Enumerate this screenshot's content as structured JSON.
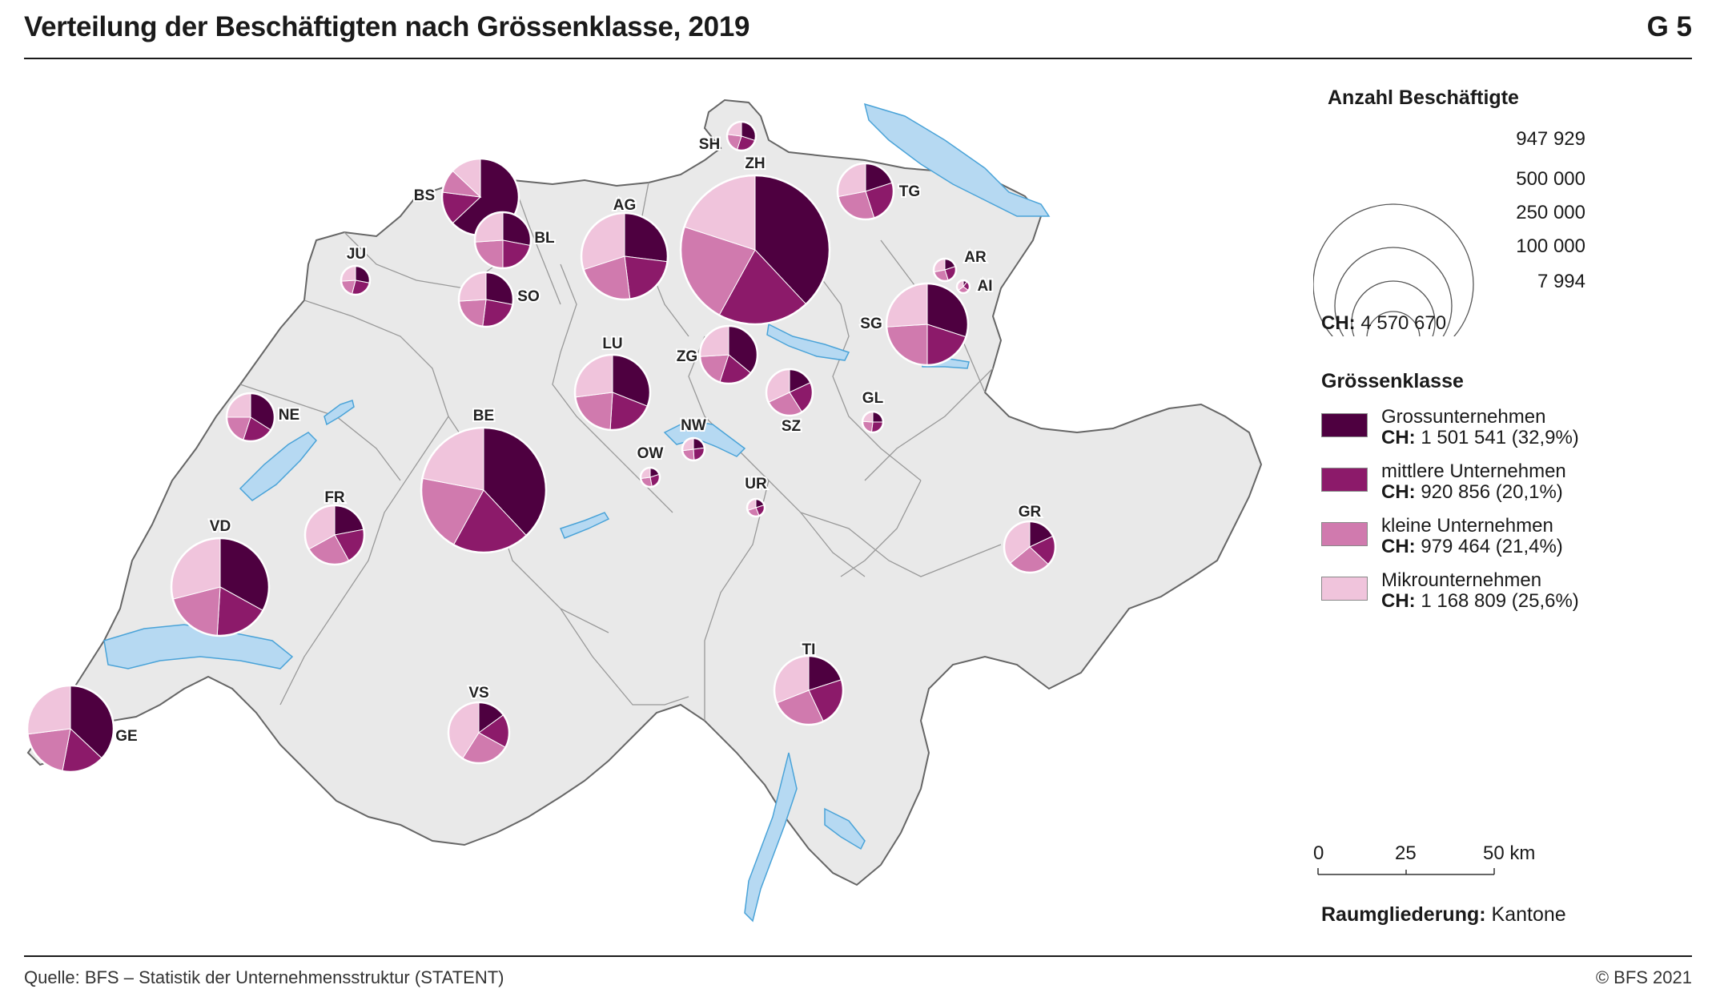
{
  "header": {
    "title": "Verteilung der Beschäftigten nach Grössenklasse, 2019",
    "figure_number": "G 5"
  },
  "footer": {
    "source": "Quelle: BFS – Statistik der Unternehmensstruktur (STATENT)",
    "copyright": "© BFS 2021"
  },
  "colors": {
    "gross": "#4e0040",
    "mittlere": "#8c1a6a",
    "kleine": "#d07aae",
    "mikro": "#f0c4dc",
    "lake": "#b6d9f2",
    "land": "#e8e8e8"
  },
  "legend": {
    "size_title": "Anzahl Beschäftigte",
    "size_values": [
      "947 929",
      "500 000",
      "250 000",
      "100 000",
      "7 994"
    ],
    "ch_total_label": "CH:",
    "ch_total_value": "4 570 670",
    "class_title": "Grössenklasse",
    "categories": [
      {
        "name": "Grossunternehmen",
        "ch_label": "CH:",
        "ch_value": "1 501 541 (32,9%)"
      },
      {
        "name": "mittlere Unternehmen",
        "ch_label": "CH:",
        "ch_value": "920 856 (20,1%)"
      },
      {
        "name": "kleine Unternehmen",
        "ch_label": "CH:",
        "ch_value": "979 464 (21,4%)"
      },
      {
        "name": "Mikrounternehmen",
        "ch_label": "CH:",
        "ch_value": "1 168 809 (25,6%)"
      }
    ],
    "scale_labels": [
      "0",
      "25",
      "50 km"
    ],
    "raum_label": "Raumgliederung:",
    "raum_value": "Kantone"
  },
  "cantons": [
    {
      "code": "ZH",
      "share": [
        38,
        20,
        22,
        20
      ]
    },
    {
      "code": "BE",
      "share": [
        38,
        20,
        20,
        22
      ]
    },
    {
      "code": "VD",
      "share": [
        33,
        18,
        20,
        29
      ]
    },
    {
      "code": "AG",
      "share": [
        27,
        21,
        22,
        30
      ]
    },
    {
      "code": "GE",
      "share": [
        37,
        16,
        20,
        27
      ]
    },
    {
      "code": "SG",
      "share": [
        30,
        20,
        24,
        26
      ]
    },
    {
      "code": "BS",
      "share": [
        63,
        14,
        10,
        13
      ]
    },
    {
      "code": "LU",
      "share": [
        31,
        20,
        22,
        27
      ]
    },
    {
      "code": "TI",
      "share": [
        20,
        23,
        26,
        31
      ]
    },
    {
      "code": "VS",
      "share": [
        15,
        18,
        26,
        41
      ]
    },
    {
      "code": "FR",
      "share": [
        22,
        20,
        25,
        33
      ]
    },
    {
      "code": "BL",
      "share": [
        28,
        22,
        24,
        26
      ]
    },
    {
      "code": "TG",
      "share": [
        20,
        25,
        27,
        28
      ]
    },
    {
      "code": "SO",
      "share": [
        28,
        24,
        22,
        26
      ]
    },
    {
      "code": "ZG",
      "share": [
        36,
        19,
        19,
        26
      ]
    },
    {
      "code": "GR",
      "share": [
        18,
        19,
        27,
        36
      ]
    },
    {
      "code": "NE",
      "share": [
        34,
        21,
        20,
        25
      ]
    },
    {
      "code": "SZ",
      "share": [
        18,
        23,
        27,
        32
      ]
    },
    {
      "code": "SH",
      "share": [
        30,
        25,
        22,
        23
      ]
    },
    {
      "code": "JU",
      "share": [
        28,
        26,
        20,
        26
      ]
    },
    {
      "code": "AR",
      "share": [
        20,
        25,
        27,
        28
      ]
    },
    {
      "code": "NW",
      "share": [
        23,
        26,
        24,
        27
      ]
    },
    {
      "code": "OW",
      "share": [
        20,
        27,
        26,
        27
      ]
    },
    {
      "code": "GL",
      "share": [
        25,
        27,
        24,
        24
      ]
    },
    {
      "code": "UR",
      "share": [
        20,
        24,
        26,
        30
      ]
    },
    {
      "code": "AI",
      "share": [
        10,
        25,
        30,
        35
      ]
    }
  ]
}
